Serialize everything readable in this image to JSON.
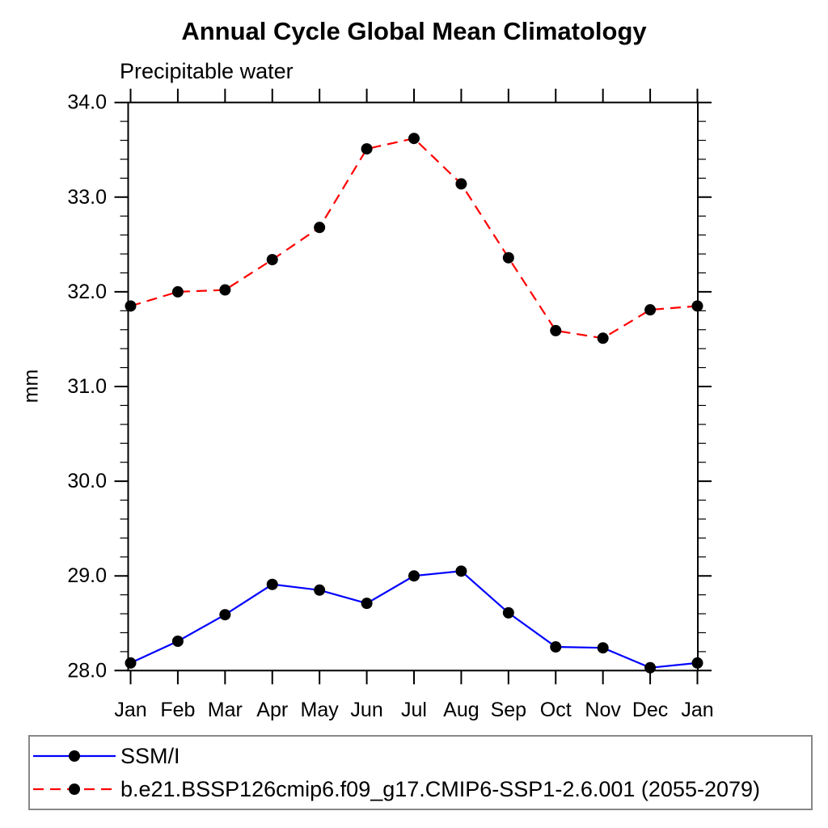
{
  "chart_data": {
    "type": "line",
    "title": "Annual Cycle Global Mean Climatology",
    "subtitle": "Precipitable water",
    "ylabel": "mm",
    "xlabel": "",
    "categories": [
      "Jan",
      "Feb",
      "Mar",
      "Apr",
      "May",
      "Jun",
      "Jul",
      "Aug",
      "Sep",
      "Oct",
      "Nov",
      "Dec",
      "Jan"
    ],
    "ylim": [
      28.0,
      34.0
    ],
    "ytick_major_step": 1.0,
    "ytick_minor_step": 0.2,
    "ytick_labels": [
      "28.0",
      "29.0",
      "30.0",
      "31.0",
      "32.0",
      "33.0",
      "34.0"
    ],
    "grid": false,
    "legend_position": "bottom-left-box",
    "marker": "filled-circle",
    "marker_color": "#000000",
    "series": [
      {
        "name": "SSM/I",
        "color": "#0000ff",
        "style": "solid",
        "values": [
          28.08,
          28.31,
          28.59,
          28.91,
          28.85,
          28.71,
          29.0,
          29.05,
          28.61,
          28.25,
          28.24,
          28.03,
          28.08
        ]
      },
      {
        "name": "b.e21.BSSP126cmip6.f09_g17.CMIP6-SSP1-2.6.001 (2055-2079)",
        "color": "#ff0000",
        "style": "dashed",
        "values": [
          31.85,
          32.0,
          32.02,
          32.34,
          32.68,
          33.51,
          33.62,
          33.14,
          32.36,
          31.59,
          31.51,
          31.81,
          31.85
        ]
      }
    ]
  }
}
